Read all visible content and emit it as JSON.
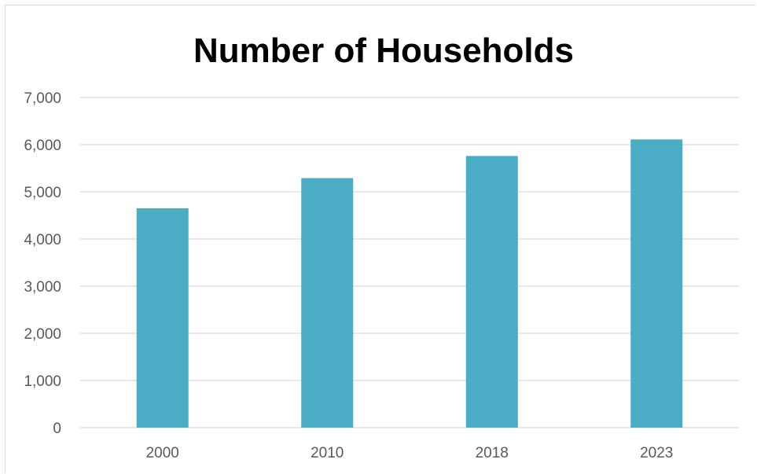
{
  "chart_data": {
    "type": "bar",
    "title": "Number of Households",
    "categories": [
      "2000",
      "2010",
      "2018",
      "2023"
    ],
    "values": [
      4650,
      5290,
      5760,
      6110
    ],
    "xlabel": "",
    "ylabel": "",
    "ylim": [
      0,
      7000
    ],
    "yticks": [
      0,
      1000,
      2000,
      3000,
      4000,
      5000,
      6000,
      7000
    ],
    "ytick_labels": [
      "0",
      "1,000",
      "2,000",
      "3,000",
      "4,000",
      "5,000",
      "6,000",
      "7,000"
    ],
    "grid": true,
    "legend": "none",
    "bar_color": "#4bacc6",
    "grid_color": "#d9d9d9",
    "axis_color": "#d9d9d9"
  }
}
